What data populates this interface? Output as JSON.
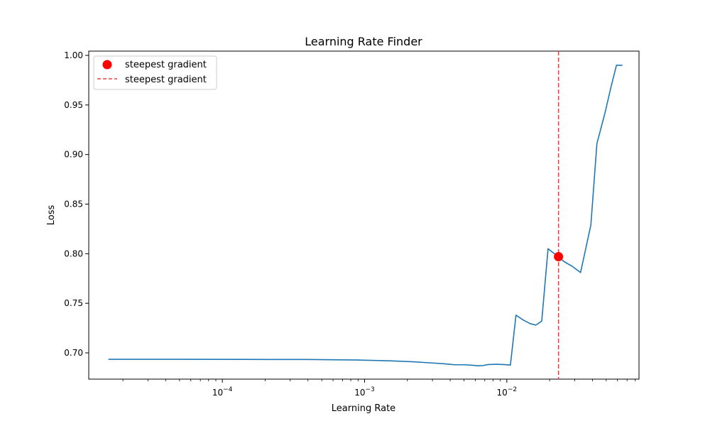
{
  "chart_data": {
    "type": "line",
    "title": "Learning Rate Finder",
    "xlabel": "Learning Rate",
    "ylabel": "Loss",
    "xscale": "log",
    "xlim": [
      1.15e-05,
      0.085
    ],
    "ylim": [
      0.6735,
      1.0043
    ],
    "grid": false,
    "legend_position": "top-left",
    "x_ticks": [
      {
        "value": 0.0001,
        "base": "10",
        "exp": "−4"
      },
      {
        "value": 0.001,
        "base": "10",
        "exp": "−3"
      },
      {
        "value": 0.01,
        "base": "10",
        "exp": "−2"
      }
    ],
    "y_ticks": [
      {
        "value": 0.7,
        "label": "0.70"
      },
      {
        "value": 0.75,
        "label": "0.75"
      },
      {
        "value": 0.8,
        "label": "0.80"
      },
      {
        "value": 0.85,
        "label": "0.85"
      },
      {
        "value": 0.9,
        "label": "0.90"
      },
      {
        "value": 0.95,
        "label": "0.95"
      },
      {
        "value": 1.0,
        "label": "1.00"
      }
    ],
    "series": [
      {
        "color": "#1f77b4",
        "points": [
          [
            1.58e-05,
            0.6935
          ],
          [
            5e-05,
            0.6935
          ],
          [
            0.00014,
            0.6934
          ],
          [
            0.0004,
            0.6933
          ],
          [
            0.0009,
            0.6928
          ],
          [
            0.0015,
            0.692
          ],
          [
            0.0022,
            0.691
          ],
          [
            0.003,
            0.6898
          ],
          [
            0.0036,
            0.689
          ],
          [
            0.0043,
            0.688
          ],
          [
            0.005,
            0.688
          ],
          [
            0.0057,
            0.6875
          ],
          [
            0.0063,
            0.687
          ],
          [
            0.0068,
            0.6872
          ],
          [
            0.0074,
            0.6882
          ],
          [
            0.0085,
            0.6885
          ],
          [
            0.0095,
            0.6882
          ],
          [
            0.0106,
            0.6877
          ],
          [
            0.0116,
            0.738
          ],
          [
            0.0131,
            0.733
          ],
          [
            0.0146,
            0.7295
          ],
          [
            0.016,
            0.728
          ],
          [
            0.0176,
            0.732
          ],
          [
            0.0195,
            0.805
          ],
          [
            0.023,
            0.797
          ],
          [
            0.0253,
            0.792
          ],
          [
            0.029,
            0.787
          ],
          [
            0.033,
            0.781
          ],
          [
            0.039,
            0.829
          ],
          [
            0.043,
            0.911
          ],
          [
            0.049,
            0.942
          ],
          [
            0.054,
            0.968
          ],
          [
            0.059,
            0.99
          ],
          [
            0.065,
            0.99
          ]
        ]
      }
    ],
    "marker": {
      "label": "steepest gradient",
      "x": 0.0231,
      "y": 0.797,
      "color": "#ff0000"
    },
    "vline": {
      "label": "steepest gradient",
      "x": 0.0231,
      "color": "#e8403c",
      "style": "dashed"
    }
  }
}
